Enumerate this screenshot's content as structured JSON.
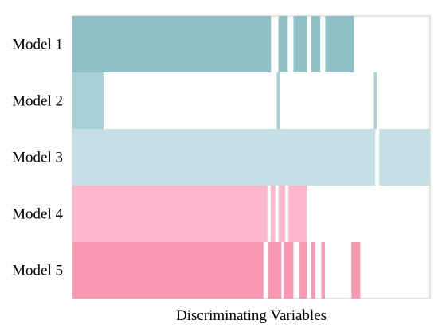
{
  "chart_data": {
    "type": "bar",
    "xlabel": "Discriminating Variables",
    "ylabel": "",
    "xlim": [
      0,
      100
    ],
    "grid": false,
    "legend": "none",
    "categories": [
      "Model 1",
      "Model 2",
      "Model 3",
      "Model 4",
      "Model 5"
    ],
    "series": [
      {
        "color": "#8ec0c5",
        "segments": [
          [
            0,
            55.5
          ],
          [
            57.6,
            60.2
          ],
          [
            61.8,
            65.6
          ],
          [
            66.8,
            69.3
          ],
          [
            70.7,
            78.7
          ]
        ]
      },
      {
        "color": "#a8d0d6",
        "segments": [
          [
            0,
            8.7
          ],
          [
            57.1,
            58.1
          ],
          [
            84.3,
            85.1
          ]
        ]
      },
      {
        "color": "#c4dfe5",
        "segments": [
          [
            0,
            84.7
          ],
          [
            85.8,
            100
          ]
        ]
      },
      {
        "color": "#fbb6cb",
        "segments": [
          [
            0,
            54.5
          ],
          [
            55.4,
            56.7
          ],
          [
            57.6,
            59.5
          ],
          [
            60.4,
            65.5
          ]
        ]
      },
      {
        "color": "#f898b2",
        "segments": [
          [
            0,
            53.4
          ],
          [
            54.7,
            58.4
          ],
          [
            59.1,
            61.8
          ],
          [
            63.5,
            65.6
          ],
          [
            66.8,
            67.9
          ],
          [
            69.6,
            70.6
          ],
          [
            78.0,
            80.5
          ]
        ]
      }
    ]
  }
}
